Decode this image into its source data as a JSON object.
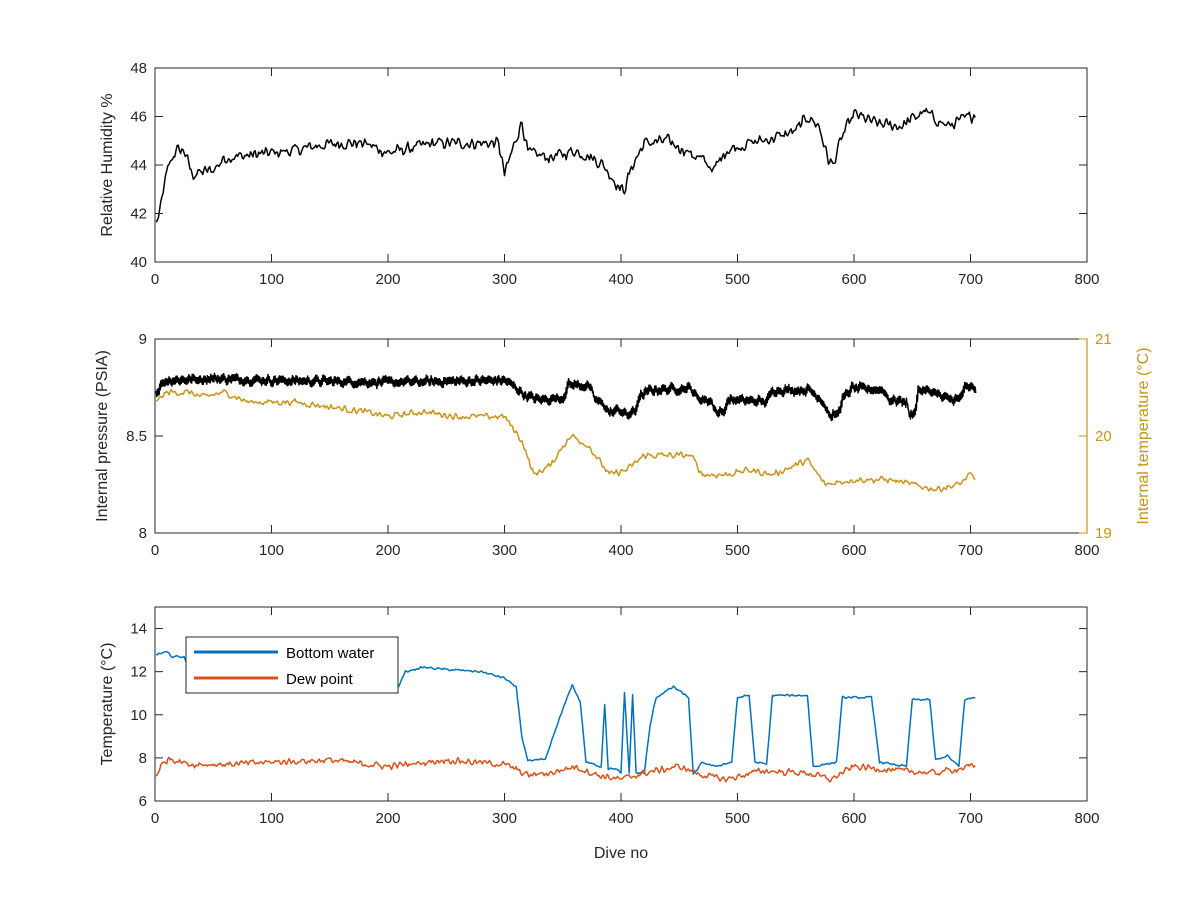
{
  "figure": {
    "background": "#ffffff",
    "axis_color": "#262626"
  },
  "chart_data": [
    {
      "type": "line",
      "xlabel": "",
      "ylabel": "Relative Humidity %",
      "xlim": [
        0,
        800
      ],
      "ylim": [
        40,
        48
      ],
      "xticks": [
        0,
        100,
        200,
        300,
        400,
        500,
        600,
        700,
        800
      ],
      "yticks": [
        40,
        42,
        44,
        46,
        48
      ],
      "xtick_labels": [
        "0",
        "100",
        "200",
        "300",
        "400",
        "500",
        "600",
        "700",
        "800"
      ],
      "ytick_labels": [
        "40",
        "42",
        "44",
        "46",
        "48"
      ],
      "grid": false,
      "series": [
        {
          "color": "#000000",
          "noise": 0.3,
          "points": [
            [
              1,
              41.6
            ],
            [
              4,
              42.0
            ],
            [
              8,
              43.2
            ],
            [
              12,
              44.0
            ],
            [
              18,
              44.6
            ],
            [
              25,
              44.6
            ],
            [
              32,
              43.6
            ],
            [
              40,
              43.7
            ],
            [
              50,
              43.8
            ],
            [
              60,
              44.3
            ],
            [
              80,
              44.4
            ],
            [
              100,
              44.5
            ],
            [
              120,
              44.6
            ],
            [
              140,
              44.8
            ],
            [
              160,
              44.9
            ],
            [
              180,
              44.9
            ],
            [
              200,
              44.5
            ],
            [
              220,
              44.7
            ],
            [
              240,
              44.9
            ],
            [
              260,
              44.9
            ],
            [
              280,
              44.9
            ],
            [
              295,
              44.9
            ],
            [
              300,
              43.6
            ],
            [
              310,
              45.1
            ],
            [
              315,
              45.8
            ],
            [
              320,
              44.5
            ],
            [
              340,
              44.3
            ],
            [
              360,
              44.6
            ],
            [
              375,
              44.3
            ],
            [
              385,
              44.0
            ],
            [
              395,
              43.3
            ],
            [
              402,
              42.9
            ],
            [
              410,
              44.0
            ],
            [
              420,
              44.9
            ],
            [
              440,
              45.0
            ],
            [
              455,
              44.6
            ],
            [
              470,
              44.2
            ],
            [
              480,
              43.8
            ],
            [
              490,
              44.6
            ],
            [
              510,
              44.9
            ],
            [
              530,
              45.1
            ],
            [
              550,
              45.4
            ],
            [
              560,
              46.0
            ],
            [
              570,
              45.6
            ],
            [
              578,
              44.2
            ],
            [
              582,
              44.0
            ],
            [
              590,
              45.2
            ],
            [
              600,
              46.1
            ],
            [
              620,
              45.7
            ],
            [
              640,
              45.6
            ],
            [
              660,
              46.2
            ],
            [
              680,
              45.6
            ],
            [
              700,
              46.0
            ],
            [
              704,
              46.1
            ]
          ]
        }
      ]
    },
    {
      "type": "line",
      "xlabel": "",
      "ylabel": "Internal pressure (PSIA)",
      "ylabel_right": "Internal temperature (°C)",
      "xlim": [
        0,
        800
      ],
      "ylim": [
        8,
        9
      ],
      "ylim_right": [
        19,
        21
      ],
      "xticks": [
        0,
        100,
        200,
        300,
        400,
        500,
        600,
        700,
        800
      ],
      "yticks": [
        8,
        8.5,
        9
      ],
      "yticks_right": [
        19,
        20,
        21
      ],
      "xtick_labels": [
        "0",
        "100",
        "200",
        "300",
        "400",
        "500",
        "600",
        "700",
        "800"
      ],
      "ytick_labels": [
        "8",
        "8.5",
        "9"
      ],
      "ytick_labels_right": [
        "19",
        "20",
        "21"
      ],
      "right_axis_color": "#C89419",
      "grid": false,
      "series": [
        {
          "color": "#000000",
          "axis": "left",
          "noise": 0.02,
          "osc": 0.03,
          "points": [
            [
              1,
              8.72
            ],
            [
              5,
              8.77
            ],
            [
              10,
              8.79
            ],
            [
              50,
              8.8
            ],
            [
              100,
              8.79
            ],
            [
              200,
              8.78
            ],
            [
              300,
              8.79
            ],
            [
              308,
              8.76
            ],
            [
              318,
              8.71
            ],
            [
              330,
              8.69
            ],
            [
              350,
              8.7
            ],
            [
              355,
              8.77
            ],
            [
              372,
              8.76
            ],
            [
              378,
              8.69
            ],
            [
              386,
              8.66
            ],
            [
              390,
              8.62
            ],
            [
              398,
              8.64
            ],
            [
              405,
              8.61
            ],
            [
              412,
              8.63
            ],
            [
              415,
              8.7
            ],
            [
              425,
              8.74
            ],
            [
              460,
              8.75
            ],
            [
              465,
              8.7
            ],
            [
              478,
              8.68
            ],
            [
              482,
              8.62
            ],
            [
              488,
              8.63
            ],
            [
              492,
              8.69
            ],
            [
              525,
              8.68
            ],
            [
              530,
              8.74
            ],
            [
              562,
              8.74
            ],
            [
              572,
              8.69
            ],
            [
              580,
              8.6
            ],
            [
              586,
              8.62
            ],
            [
              590,
              8.69
            ],
            [
              598,
              8.75
            ],
            [
              625,
              8.74
            ],
            [
              630,
              8.69
            ],
            [
              645,
              8.68
            ],
            [
              648,
              8.6
            ],
            [
              652,
              8.63
            ],
            [
              655,
              8.74
            ],
            [
              670,
              8.73
            ],
            [
              675,
              8.7
            ],
            [
              690,
              8.69
            ],
            [
              695,
              8.75
            ],
            [
              704,
              8.75
            ]
          ]
        },
        {
          "color": "#C89419",
          "axis": "right",
          "noise": 0.04,
          "points": [
            [
              1,
              20.35
            ],
            [
              10,
              20.45
            ],
            [
              30,
              20.45
            ],
            [
              40,
              20.4
            ],
            [
              60,
              20.45
            ],
            [
              80,
              20.35
            ],
            [
              120,
              20.35
            ],
            [
              150,
              20.3
            ],
            [
              180,
              20.25
            ],
            [
              200,
              20.2
            ],
            [
              230,
              20.25
            ],
            [
              260,
              20.2
            ],
            [
              300,
              20.2
            ],
            [
              315,
              19.95
            ],
            [
              325,
              19.6
            ],
            [
              340,
              19.7
            ],
            [
              350,
              19.9
            ],
            [
              358,
              20.0
            ],
            [
              372,
              19.9
            ],
            [
              390,
              19.6
            ],
            [
              405,
              19.65
            ],
            [
              420,
              19.8
            ],
            [
              440,
              19.8
            ],
            [
              460,
              19.8
            ],
            [
              470,
              19.6
            ],
            [
              490,
              19.6
            ],
            [
              510,
              19.65
            ],
            [
              530,
              19.6
            ],
            [
              560,
              19.75
            ],
            [
              575,
              19.5
            ],
            [
              600,
              19.55
            ],
            [
              630,
              19.55
            ],
            [
              650,
              19.5
            ],
            [
              670,
              19.45
            ],
            [
              690,
              19.5
            ],
            [
              700,
              19.6
            ],
            [
              704,
              19.55
            ]
          ]
        }
      ]
    },
    {
      "type": "line",
      "xlabel": "Dive no",
      "ylabel": "Temperature (°C)",
      "xlim": [
        0,
        800
      ],
      "ylim": [
        6,
        15
      ],
      "xticks": [
        0,
        100,
        200,
        300,
        400,
        500,
        600,
        700,
        800
      ],
      "yticks": [
        6,
        8,
        10,
        12,
        14
      ],
      "xtick_labels": [
        "0",
        "100",
        "200",
        "300",
        "400",
        "500",
        "600",
        "700",
        "800"
      ],
      "ytick_labels": [
        "6",
        "8",
        "10",
        "12",
        "14"
      ],
      "grid": false,
      "legend": {
        "position": "top-left"
      },
      "series": [
        {
          "name": "Bottom water",
          "color": "#0072BD",
          "noise": 0.06,
          "points": [
            [
              1,
              12.8
            ],
            [
              10,
              12.9
            ],
            [
              15,
              12.7
            ],
            [
              25,
              12.7
            ],
            [
              30,
              11.8
            ],
            [
              40,
              11.9
            ],
            [
              60,
              11.9
            ],
            [
              80,
              12.0
            ],
            [
              120,
              12.0
            ],
            [
              160,
              11.9
            ],
            [
              200,
              11.8
            ],
            [
              208,
              11.2
            ],
            [
              215,
              12.0
            ],
            [
              230,
              12.2
            ],
            [
              250,
              12.1
            ],
            [
              280,
              12.0
            ],
            [
              300,
              11.7
            ],
            [
              310,
              11.3
            ],
            [
              315,
              8.9
            ],
            [
              320,
              7.9
            ],
            [
              335,
              7.9
            ],
            [
              345,
              9.5
            ],
            [
              358,
              11.4
            ],
            [
              365,
              10.6
            ],
            [
              370,
              7.8
            ],
            [
              383,
              7.6
            ],
            [
              386,
              10.5
            ],
            [
              389,
              7.5
            ],
            [
              395,
              7.5
            ],
            [
              400,
              7.3
            ],
            [
              403,
              11.0
            ],
            [
              407,
              7.3
            ],
            [
              410,
              10.9
            ],
            [
              413,
              7.3
            ],
            [
              420,
              7.3
            ],
            [
              425,
              9.5
            ],
            [
              430,
              10.8
            ],
            [
              445,
              11.3
            ],
            [
              458,
              10.8
            ],
            [
              462,
              7.2
            ],
            [
              470,
              7.8
            ],
            [
              480,
              7.6
            ],
            [
              495,
              7.8
            ],
            [
              500,
              10.8
            ],
            [
              510,
              10.9
            ],
            [
              515,
              7.8
            ],
            [
              525,
              7.7
            ],
            [
              530,
              10.9
            ],
            [
              560,
              10.9
            ],
            [
              565,
              7.6
            ],
            [
              585,
              7.8
            ],
            [
              590,
              10.8
            ],
            [
              615,
              10.8
            ],
            [
              622,
              7.8
            ],
            [
              645,
              7.6
            ],
            [
              650,
              10.7
            ],
            [
              665,
              10.7
            ],
            [
              670,
              7.9
            ],
            [
              680,
              8.1
            ],
            [
              690,
              7.6
            ],
            [
              695,
              10.7
            ],
            [
              704,
              10.8
            ]
          ]
        },
        {
          "name": "Dew point",
          "color": "#D95319",
          "noise": 0.18,
          "points": [
            [
              1,
              7.2
            ],
            [
              5,
              7.6
            ],
            [
              12,
              8.0
            ],
            [
              30,
              7.7
            ],
            [
              60,
              7.7
            ],
            [
              100,
              7.8
            ],
            [
              150,
              7.9
            ],
            [
              200,
              7.6
            ],
            [
              250,
              7.9
            ],
            [
              300,
              7.7
            ],
            [
              320,
              7.2
            ],
            [
              340,
              7.3
            ],
            [
              360,
              7.6
            ],
            [
              380,
              7.2
            ],
            [
              400,
              7.0
            ],
            [
              420,
              7.3
            ],
            [
              450,
              7.6
            ],
            [
              470,
              7.2
            ],
            [
              490,
              7.0
            ],
            [
              520,
              7.4
            ],
            [
              560,
              7.3
            ],
            [
              580,
              7.0
            ],
            [
              600,
              7.6
            ],
            [
              640,
              7.4
            ],
            [
              670,
              7.3
            ],
            [
              700,
              7.6
            ],
            [
              704,
              7.6
            ]
          ]
        }
      ]
    }
  ]
}
